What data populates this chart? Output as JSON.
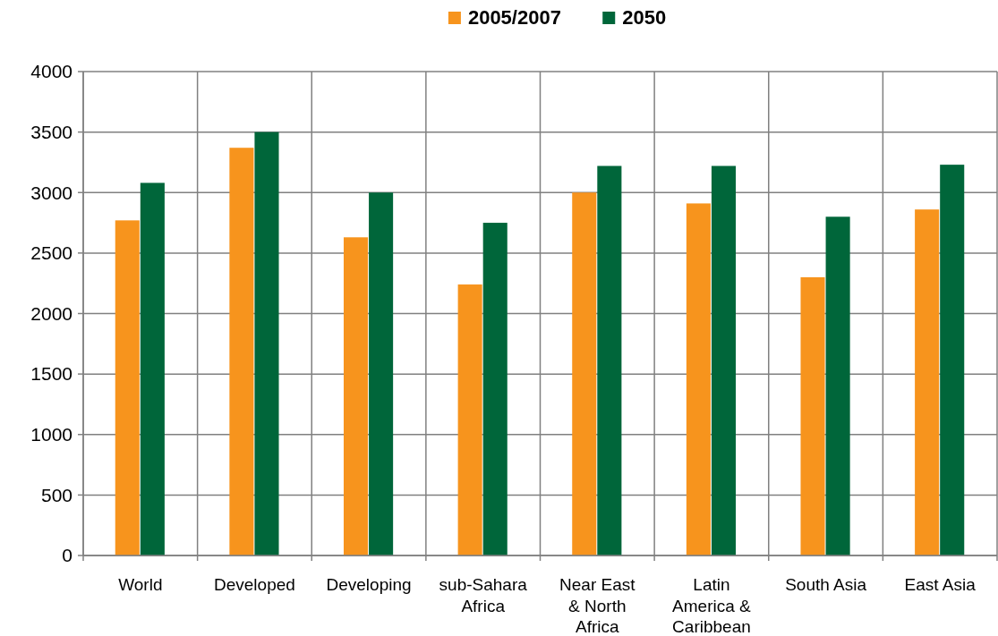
{
  "chart_data": {
    "type": "bar",
    "categories": [
      "World",
      "Developed",
      "Developing",
      "sub-Sahara Africa",
      "Near East & North Africa",
      "Latin America & Caribbean",
      "South Asia",
      "East Asia"
    ],
    "series": [
      {
        "name": "2005/2007",
        "color": "#f7941d",
        "values": [
          2770,
          3370,
          2630,
          2240,
          3000,
          2910,
          2300,
          2860
        ]
      },
      {
        "name": "2050",
        "color": "#00663a",
        "values": [
          3080,
          3500,
          3000,
          2750,
          3220,
          3220,
          2800,
          3230
        ]
      }
    ],
    "ylim": [
      0,
      4000
    ],
    "yticks": [
      0,
      500,
      1000,
      1500,
      2000,
      2500,
      3000,
      3500,
      4000
    ],
    "grid": true,
    "legend": "top"
  }
}
